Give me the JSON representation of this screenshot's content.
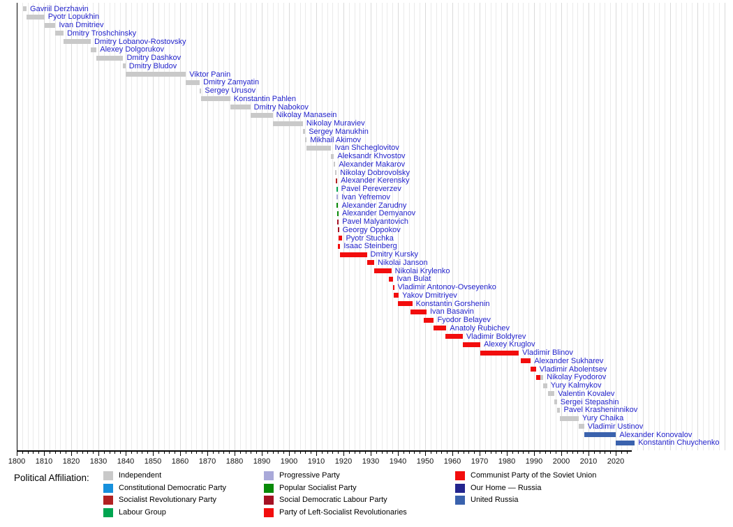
{
  "colors": {
    "link_text": "#2222CC",
    "axis": "#000000",
    "gridline_minor": "#EAEAEA",
    "gridline_decade": "#DADADA"
  },
  "parties": {
    "independent": {
      "label": "Independent",
      "color": "#C9C9C9"
    },
    "kadet": {
      "label": "Constitutional Democratic Party",
      "color": "#1690DC"
    },
    "sr": {
      "label": "Socialist Revolutionary Party",
      "color": "#B22222"
    },
    "labour": {
      "label": "Labour Group",
      "color": "#00A550"
    },
    "progressive": {
      "label": "Progressive Party",
      "color": "#A9A9D9"
    },
    "popsoc": {
      "label": "Popular Socialist Party",
      "color": "#088A08"
    },
    "sdlp": {
      "label": "Social Democratic Labour Party",
      "color": "#A51224"
    },
    "leftsr": {
      "label": "Party of Left-Socialist Revolutionaries",
      "color": "#F20D0D"
    },
    "cpsu": {
      "label": "Communist Party of the Soviet Union",
      "color": "#F20D0D"
    },
    "ohr": {
      "label": "Our Home — Russia",
      "color": "#23258E"
    },
    "ur": {
      "label": "United Russia",
      "color": "#3A62AD"
    }
  },
  "legend": {
    "title": "Political Affiliation:",
    "columns": [
      [
        "independent",
        "kadet",
        "sr",
        "labour"
      ],
      [
        "progressive",
        "popsoc",
        "sdlp",
        "leftsr"
      ],
      [
        "cpsu",
        "ohr",
        "ur"
      ]
    ]
  },
  "chart_data": {
    "type": "bar",
    "subtype": "timeline-gantt",
    "description": "Timeline of office holders (Ministers of Justice of Russia) colored by political affiliation",
    "axis": {
      "start_year": 1800,
      "axis_end_year": 2026,
      "major_tick_every": 10,
      "minor_tick_every": 2,
      "tick_labels": [
        1800,
        1810,
        1820,
        1830,
        1840,
        1850,
        1860,
        1870,
        1880,
        1890,
        1900,
        1910,
        1920,
        1930,
        1940,
        1950,
        1960,
        1970,
        1980,
        1990,
        2000,
        2010,
        2020
      ],
      "grid": true
    },
    "rows": [
      {
        "name": "Gavriil Derzhavin",
        "segments": [
          {
            "party": "independent",
            "from": 1802.3,
            "to": 1803.6
          }
        ]
      },
      {
        "name": "Pyotr Lopukhin",
        "segments": [
          {
            "party": "independent",
            "from": 1803.6,
            "to": 1810.2
          }
        ]
      },
      {
        "name": "Ivan Dmitriev",
        "segments": [
          {
            "party": "independent",
            "from": 1810.2,
            "to": 1814.2
          }
        ]
      },
      {
        "name": "Dmitry Troshchinsky",
        "segments": [
          {
            "party": "independent",
            "from": 1814.2,
            "to": 1817.2
          }
        ]
      },
      {
        "name": "Dmitry Lobanov-Rostovsky",
        "segments": [
          {
            "party": "independent",
            "from": 1817.2,
            "to": 1827.2
          }
        ]
      },
      {
        "name": "Alexey Dolgorukov",
        "segments": [
          {
            "party": "independent",
            "from": 1827.2,
            "to": 1829.3
          }
        ]
      },
      {
        "name": "Dmitry Dashkov",
        "segments": [
          {
            "party": "independent",
            "from": 1829.3,
            "to": 1839.1
          }
        ]
      },
      {
        "name": "Dmitry Bludov",
        "segments": [
          {
            "party": "independent",
            "from": 1839.1,
            "to": 1839.95
          }
        ]
      },
      {
        "name": "Viktor Panin",
        "segments": [
          {
            "party": "independent",
            "from": 1839.95,
            "to": 1862.1
          }
        ]
      },
      {
        "name": "Dmitry Zamyatin",
        "segments": [
          {
            "party": "independent",
            "from": 1862.1,
            "to": 1867.2
          }
        ]
      },
      {
        "name": "Sergey Urusov",
        "segments": [
          {
            "party": "independent",
            "from": 1867.2,
            "to": 1867.8
          }
        ]
      },
      {
        "name": "Konstantin Pahlen",
        "segments": [
          {
            "party": "independent",
            "from": 1867.8,
            "to": 1878.4
          }
        ]
      },
      {
        "name": "Dmitry Nabokov",
        "segments": [
          {
            "party": "independent",
            "from": 1878.4,
            "to": 1885.8
          }
        ]
      },
      {
        "name": "Nikolay Manasein",
        "segments": [
          {
            "party": "independent",
            "from": 1885.8,
            "to": 1894.0
          }
        ]
      },
      {
        "name": "Nikolay Muraviev",
        "segments": [
          {
            "party": "independent",
            "from": 1894.0,
            "to": 1905.1
          }
        ]
      },
      {
        "name": "Sergey Manukhin",
        "segments": [
          {
            "party": "independent",
            "from": 1905.1,
            "to": 1905.95
          }
        ]
      },
      {
        "name": "Mikhail Akimov",
        "segments": [
          {
            "party": "independent",
            "from": 1905.95,
            "to": 1906.35
          }
        ]
      },
      {
        "name": "Ivan Shcheglovitov",
        "segments": [
          {
            "party": "independent",
            "from": 1906.35,
            "to": 1915.5
          }
        ]
      },
      {
        "name": "Aleksandr Khvostov",
        "segments": [
          {
            "party": "independent",
            "from": 1915.5,
            "to": 1916.5
          }
        ]
      },
      {
        "name": "Alexander Makarov",
        "segments": [
          {
            "party": "independent",
            "from": 1916.5,
            "to": 1917.0
          }
        ]
      },
      {
        "name": "Nikolay Dobrovolsky",
        "segments": [
          {
            "party": "independent",
            "from": 1917.0,
            "to": 1917.2
          }
        ]
      },
      {
        "name": "Alexander Kerensky",
        "segments": [
          {
            "party": "sr",
            "from": 1917.2,
            "to": 1917.5
          }
        ]
      },
      {
        "name": "Pavel Pereverzev",
        "segments": [
          {
            "party": "labour",
            "from": 1917.35,
            "to": 1917.65
          }
        ]
      },
      {
        "name": "Ivan Yefremov",
        "segments": [
          {
            "party": "progressive",
            "from": 1917.5,
            "to": 1917.72
          }
        ]
      },
      {
        "name": "Alexander Zarudny",
        "segments": [
          {
            "party": "popsoc",
            "from": 1917.55,
            "to": 1917.78
          }
        ]
      },
      {
        "name": "Alexander Demyanov",
        "segments": [
          {
            "party": "popsoc",
            "from": 1917.7,
            "to": 1917.92
          }
        ]
      },
      {
        "name": "Pavel Malyantovich",
        "segments": [
          {
            "party": "sdlp",
            "from": 1917.75,
            "to": 1917.98
          }
        ]
      },
      {
        "name": "Georgy Oppokov",
        "segments": [
          {
            "party": "sdlp",
            "from": 1917.85,
            "to": 1918.2
          }
        ]
      },
      {
        "name": "Pyotr Stuchka",
        "segments": [
          {
            "party": "cpsu",
            "from": 1918.1,
            "to": 1919.6
          }
        ]
      },
      {
        "name": "Isaac Steinberg",
        "segments": [
          {
            "party": "leftsr",
            "from": 1917.9,
            "to": 1918.8
          }
        ]
      },
      {
        "name": "Dmitry Kursky",
        "segments": [
          {
            "party": "cpsu",
            "from": 1918.6,
            "to": 1928.6
          }
        ]
      },
      {
        "name": "Nikolai Janson",
        "segments": [
          {
            "party": "cpsu",
            "from": 1928.6,
            "to": 1931.3
          }
        ]
      },
      {
        "name": "Nikolai Krylenko",
        "segments": [
          {
            "party": "cpsu",
            "from": 1931.3,
            "to": 1937.6
          }
        ]
      },
      {
        "name": "Ivan Bulat",
        "segments": [
          {
            "party": "cpsu",
            "from": 1936.6,
            "to": 1938.3
          }
        ]
      },
      {
        "name": "Vladimir Antonov-Ovseyenko",
        "segments": [
          {
            "party": "cpsu",
            "from": 1938.1,
            "to": 1938.5
          }
        ]
      },
      {
        "name": "Yakov Dmitriyev",
        "segments": [
          {
            "party": "cpsu",
            "from": 1938.4,
            "to": 1940.3
          }
        ]
      },
      {
        "name": "Konstantin Gorshenin",
        "segments": [
          {
            "party": "cpsu",
            "from": 1940.0,
            "to": 1945.3
          }
        ]
      },
      {
        "name": "Ivan Basavin",
        "segments": [
          {
            "party": "cpsu",
            "from": 1944.7,
            "to": 1950.5
          }
        ]
      },
      {
        "name": "Fyodor Belayev",
        "segments": [
          {
            "party": "cpsu",
            "from": 1949.4,
            "to": 1953.2
          }
        ]
      },
      {
        "name": "Anatoly Rubichev",
        "segments": [
          {
            "party": "cpsu",
            "from": 1953.2,
            "to": 1957.8
          }
        ]
      },
      {
        "name": "Vladimir Boldyrev",
        "segments": [
          {
            "party": "cpsu",
            "from": 1957.5,
            "to": 1963.8
          }
        ]
      },
      {
        "name": "Alexey Kruglov",
        "segments": [
          {
            "party": "cpsu",
            "from": 1963.8,
            "to": 1970.3
          }
        ]
      },
      {
        "name": "Vladimir Blinov",
        "segments": [
          {
            "party": "cpsu",
            "from": 1970.3,
            "to": 1984.4
          }
        ]
      },
      {
        "name": "Alexander Sukharev",
        "segments": [
          {
            "party": "cpsu",
            "from": 1985.2,
            "to": 1988.8
          }
        ]
      },
      {
        "name": "Vladimir Abolentsev",
        "segments": [
          {
            "party": "cpsu",
            "from": 1988.8,
            "to": 1990.7
          }
        ]
      },
      {
        "name": "Nikolay Fyodorov",
        "segments": [
          {
            "party": "cpsu",
            "from": 1990.7,
            "to": 1992.4
          },
          {
            "party": "independent",
            "from": 1992.4,
            "to": 1993.4
          }
        ]
      },
      {
        "name": "Yury Kalmykov",
        "segments": [
          {
            "party": "independent",
            "from": 1993.4,
            "to": 1994.8
          }
        ]
      },
      {
        "name": "Valentin Kovalev",
        "segments": [
          {
            "party": "independent",
            "from": 1995.0,
            "to": 1997.5
          }
        ]
      },
      {
        "name": "Sergei Stepashin",
        "segments": [
          {
            "party": "independent",
            "from": 1997.5,
            "to": 1998.4
          }
        ]
      },
      {
        "name": "Pavel Krasheninnikov",
        "segments": [
          {
            "party": "independent",
            "from": 1998.4,
            "to": 1999.6
          }
        ]
      },
      {
        "name": "Yury Chaika",
        "segments": [
          {
            "party": "independent",
            "from": 1999.6,
            "to": 2006.4
          }
        ]
      },
      {
        "name": "Vladimir Ustinov",
        "segments": [
          {
            "party": "independent",
            "from": 2006.4,
            "to": 2008.4
          }
        ]
      },
      {
        "name": "Alexander Konovalov",
        "segments": [
          {
            "party": "ur",
            "from": 2008.4,
            "to": 2020.1
          }
        ]
      },
      {
        "name": "Konstantin Chuychenko",
        "segments": [
          {
            "party": "ur",
            "from": 2020.1,
            "to": 2027.0
          }
        ]
      }
    ]
  }
}
